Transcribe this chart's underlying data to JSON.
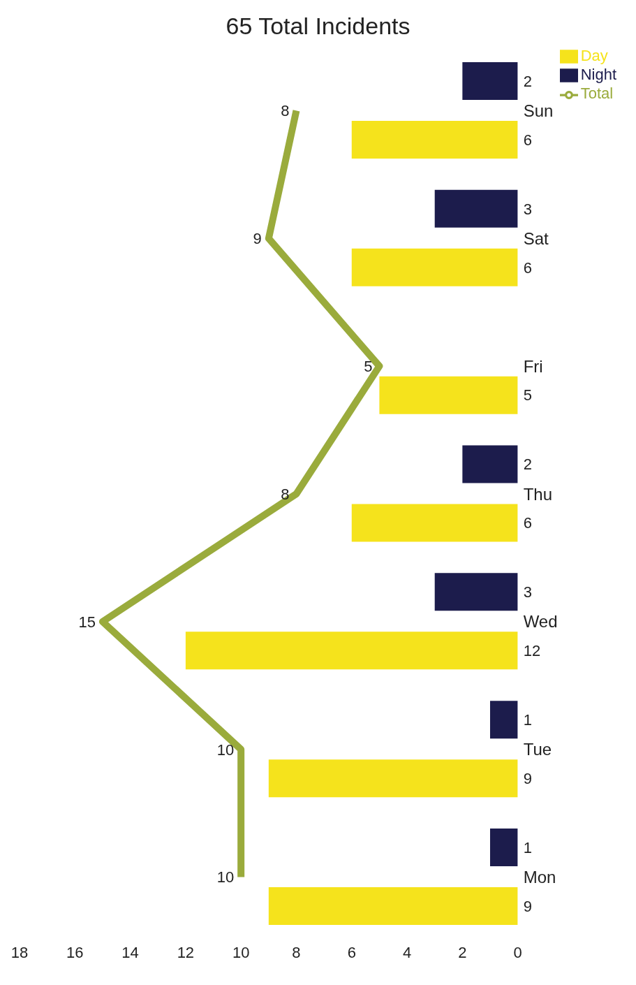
{
  "chart_data": {
    "type": "bar",
    "orientation": "horizontal",
    "title": "65 Total Incidents",
    "categories": [
      "Sun",
      "Sat",
      "Fri",
      "Thu",
      "Wed",
      "Tue",
      "Mon"
    ],
    "series": [
      {
        "name": "Day",
        "color": "#f5e31c",
        "values": [
          6,
          6,
          5,
          6,
          12,
          9,
          9
        ]
      },
      {
        "name": "Night",
        "color": "#1c1c4c",
        "values": [
          2,
          3,
          null,
          2,
          3,
          1,
          1
        ]
      },
      {
        "name": "Total",
        "type": "line",
        "color": "#9aab3c",
        "values": [
          8,
          9,
          5,
          8,
          15,
          10,
          10
        ]
      }
    ],
    "xlim": [
      18,
      0
    ],
    "xticks": [
      0,
      2,
      4,
      6,
      8,
      10,
      12,
      14,
      16,
      18
    ],
    "grid": false,
    "legend": "top right",
    "data_labels": true,
    "marker": "none"
  }
}
